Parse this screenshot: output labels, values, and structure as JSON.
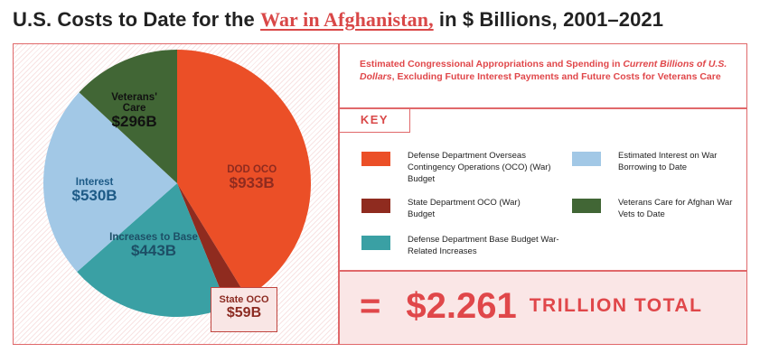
{
  "title": {
    "prefix": "U.S. Costs to Date for the ",
    "highlight": "War in Afghanistan,",
    "suffix": " in $ Billions, 2001–2021"
  },
  "subtitle": {
    "part1": "Estimated Congressional Appropriations and Spending in ",
    "italic": "Current Billions of U.S. Dollars",
    "part2": ", Excluding Future Interest Payments and Future Costs for Veterans Care"
  },
  "key_label": "KEY",
  "legend": [
    {
      "id": "dod-oco",
      "text": "Defense Department Overseas Contingency Operations (OCO) (War) Budget",
      "color": "#eb4f27"
    },
    {
      "id": "state-oco",
      "text": "State Department OCO (War) Budget",
      "color": "#8f2b1f"
    },
    {
      "id": "base-budget",
      "text": "Defense Department Base Budget War-Related Increases",
      "color": "#3aa0a4"
    },
    {
      "id": "interest",
      "text": "Estimated Interest on War Borrowing to Date",
      "color": "#a2c8e6"
    },
    {
      "id": "veterans",
      "text": "Veterans Care for Afghan War Vets to Date",
      "color": "#416635"
    }
  ],
  "total": {
    "equals": "=",
    "amount": "$2.261",
    "label": "TRILLION TOTAL"
  },
  "chart_data": {
    "type": "pie",
    "title": "U.S. Costs to Date for the War in Afghanistan, in $ Billions, 2001–2021",
    "unit": "$ Billions",
    "start": "12 o'clock, clockwise",
    "slices": [
      {
        "id": "dod-oco",
        "category": "DOD OCO",
        "value": 933,
        "label": "$933B",
        "color": "#eb4f27",
        "text_color": "#8f2b1f"
      },
      {
        "id": "state-oco",
        "category": "State OCO",
        "value": 59,
        "label": "$59B",
        "color": "#8f2b1f",
        "text_color": "#8f2b1f"
      },
      {
        "id": "base-budget",
        "category": "Increases to Base",
        "value": 443,
        "label": "$443B",
        "color": "#3aa0a4",
        "text_color": "#1d4f66"
      },
      {
        "id": "interest",
        "category": "Interest",
        "value": 530,
        "label": "$530B",
        "color": "#a2c8e6",
        "text_color": "#1d5a86"
      },
      {
        "id": "veterans",
        "category": "Veterans' Care",
        "value": 296,
        "label": "$296B",
        "color": "#416635",
        "text_color": "#111111"
      }
    ],
    "total": 2261
  }
}
